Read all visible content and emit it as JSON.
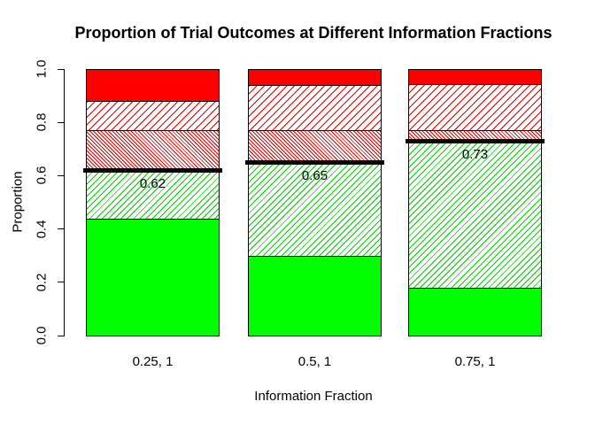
{
  "background_color": "#ffffff",
  "chart_data": {
    "type": "bar",
    "stacked": true,
    "title": "Proportion of Trial Outcomes at Different Information Fractions",
    "xlabel": "Information Fraction",
    "ylabel": "Proportion",
    "ylim": [
      0.0,
      1.0
    ],
    "yticks": [
      "0.0",
      "0.2",
      "0.4",
      "0.6",
      "0.8",
      "1.0"
    ],
    "grid": false,
    "legend": "none",
    "categories": [
      "0.25, 1",
      "0.5, 1",
      "0.75, 1"
    ],
    "series": [
      {
        "name": "green-solid",
        "pattern": "solid",
        "fill": "#00FF00",
        "values": [
          0.44,
          0.3,
          0.18
        ]
      },
      {
        "name": "green-hatched",
        "pattern": "hatch",
        "angle": 135,
        "spacing": 5,
        "line_color": "#00CC00",
        "fill": "#ffffff",
        "values": [
          0.18,
          0.35,
          0.55
        ]
      },
      {
        "name": "red-dense-hatched",
        "pattern": "hatch",
        "angle": 45,
        "spacing": 3,
        "line_color": "#DD0000",
        "fill": "#ffffff",
        "values": [
          0.15,
          0.12,
          0.04
        ]
      },
      {
        "name": "red-hatched",
        "pattern": "hatch",
        "angle": 135,
        "spacing": 6,
        "line_color": "#DD0000",
        "fill": "#ffffff",
        "values": [
          0.11,
          0.17,
          0.175
        ]
      },
      {
        "name": "red-solid",
        "pattern": "solid",
        "fill": "#FF0000",
        "values": [
          0.12,
          0.06,
          0.055
        ]
      }
    ],
    "reference_lines": {
      "color": "#000000",
      "values": [
        0.62,
        0.65,
        0.73
      ],
      "labels": [
        "0.62",
        "0.65",
        "0.73"
      ]
    },
    "border_color": "#000000"
  }
}
